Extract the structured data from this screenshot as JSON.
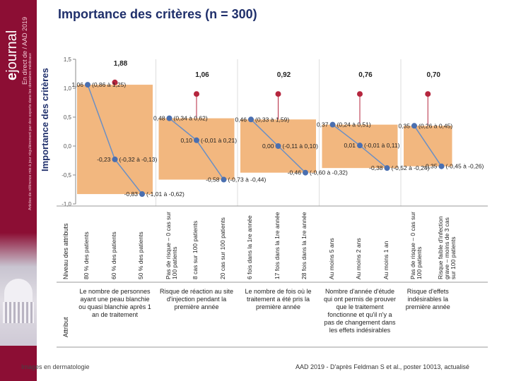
{
  "sidebar": {
    "brand_prefix": "e",
    "brand_name": "journal",
    "subtitle": "En direct de / AAD 2019",
    "note": "Articles de référence mis à jour régulièrement par des experts dans les domaines médicaux"
  },
  "title": "Importance des critères (n = 300)",
  "chart_data": {
    "type": "bar",
    "title": "Importance des critères (n = 300)",
    "ylabel": "Importance des critères",
    "ylim": [
      -1.0,
      1.5
    ],
    "yticks": [
      "1,5",
      "1,0",
      "0,5",
      "0,0",
      "-0,5",
      "-1,0"
    ],
    "categories": [
      "80 % des patients",
      "60 % des patients",
      "50 % des patients",
      "Pas de risque – 0 cas sur 100 patients",
      "8 cas sur 100 patients",
      "20 cas sur 100 patients",
      "6 fois dans la 1re année",
      "17 fois dans la 1re année",
      "28 fois dans la 1re année",
      "Au moins 5 ans",
      "Au moins 2 ans",
      "Au moins 1 an",
      "Pas de risque – 0 cas sur 100 patients",
      "Risque faible d'infection grave – moins de 3 cas sur 100 patients"
    ],
    "values": [
      1.06,
      -0.23,
      -0.83,
      0.48,
      0.1,
      -0.58,
      0.46,
      0.0,
      -0.46,
      0.37,
      0.01,
      -0.38,
      0.35,
      -0.35
    ],
    "ci_labels": [
      "(0,86 à 1,25)",
      "(-0,32 à -0,13)",
      "(-1,01 à -0,62)",
      "(0,34 à 0,62)",
      "(-0,01 à 0,21)",
      "(-0,73 à -0,44)",
      "(0,33 à 1,59)",
      "(-0,11 à 0,10)",
      "(-0,60 à -0,32)",
      "(0,24 à 0,51)",
      "(-0,01 à 0,11)",
      "(-0,52 à -0,24)",
      "(0,26 à 0,45)",
      "(-0,45 à -0,26)"
    ],
    "value_labels": [
      "1,06",
      "-0,23",
      "-0,83",
      "0,48",
      "0,10",
      "-0,58",
      "0,46",
      "0,00",
      "-0,46",
      "0,37",
      "0,01",
      "-0,38",
      "0,35",
      "-0,35"
    ],
    "groups": [
      {
        "label": "Le nombre de personnes ayant une peau blanchie ou quasi blanchie après 1 an de traitement",
        "range": [
          0,
          2
        ],
        "importance": 1.88,
        "importance_label": "1,88"
      },
      {
        "label": "Risque de réaction au site d'injection pendant la première année",
        "range": [
          3,
          5
        ],
        "importance": 1.06,
        "importance_label": "1,06"
      },
      {
        "label": "Le nombre de fois où le traitement a été pris la première année",
        "range": [
          6,
          8
        ],
        "importance": 0.92,
        "importance_label": "0,92"
      },
      {
        "label": "Nombre d'année d'étude qui ont permis de prouver que le traitement fonctionne et qu'il n'y a pas de changement dans les effets indésirables",
        "range": [
          9,
          11
        ],
        "importance": 0.76,
        "importance_label": "0,76"
      },
      {
        "label": "Risque d'effets indésirables la première année",
        "range": [
          12,
          13
        ],
        "importance": 0.7,
        "importance_label": "0,70"
      }
    ],
    "row_labels": {
      "level": "Niveau des attributs",
      "attribute": "Attribut"
    }
  },
  "colors": {
    "bar": "#f2b77f",
    "line": "#6b8fc4",
    "dot": "#4a6fb0",
    "importance_dot": "#b5263e",
    "title": "#1f2f6b",
    "sidebar": "#8c0e34"
  },
  "footer": {
    "left": "Images en dermatologie",
    "right": "AAD 2019 - D'après Feldman S et al., poster 10013, actualisé"
  }
}
